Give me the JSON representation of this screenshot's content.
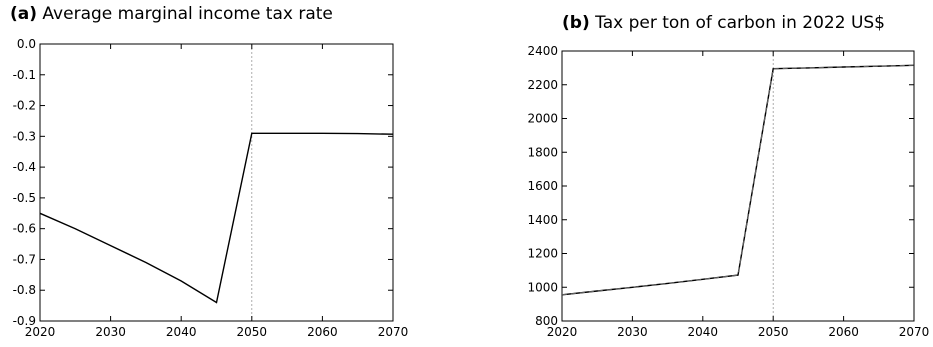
{
  "chart_data": [
    {
      "type": "line",
      "tag": "(a)",
      "title": "Average marginal income tax rate",
      "xlabel": "",
      "ylabel": "",
      "xlim": [
        2020,
        2070
      ],
      "ylim": [
        -0.9,
        0.0
      ],
      "xticks": [
        2020,
        2030,
        2040,
        2050,
        2060,
        2070
      ],
      "yticks": [
        -0.9,
        -0.8,
        -0.7,
        -0.6,
        -0.5,
        -0.4,
        -0.3,
        -0.2,
        -0.1,
        0.0
      ],
      "ytick_labels": [
        "-0.9",
        "-0.8",
        "-0.7",
        "-0.6",
        "-0.5",
        "-0.4",
        "-0.3",
        "-0.2",
        "-0.1",
        "0.0"
      ],
      "vline": 2050,
      "series": [
        {
          "style": "solid",
          "color": "#000000",
          "x": [
            2020,
            2025,
            2030,
            2035,
            2040,
            2045,
            2050,
            2055,
            2060,
            2065,
            2070
          ],
          "y": [
            -0.55,
            -0.6,
            -0.655,
            -0.71,
            -0.77,
            -0.84,
            -0.29,
            -0.29,
            -0.29,
            -0.291,
            -0.293
          ]
        }
      ]
    },
    {
      "type": "line",
      "tag": "(b)",
      "title": "Tax per ton of carbon in 2022 US$",
      "xlabel": "",
      "ylabel": "",
      "xlim": [
        2020,
        2070
      ],
      "ylim": [
        800,
        2400
      ],
      "xticks": [
        2020,
        2030,
        2040,
        2050,
        2060,
        2070
      ],
      "yticks": [
        800,
        1000,
        1200,
        1400,
        1600,
        1800,
        2000,
        2200,
        2400
      ],
      "ytick_labels": [
        "800",
        "1000",
        "1200",
        "1400",
        "1600",
        "1800",
        "2000",
        "2200",
        "2400"
      ],
      "vline": 2050,
      "series": [
        {
          "style": "solid",
          "color": "#000000",
          "x": [
            2020,
            2025,
            2030,
            2035,
            2040,
            2045,
            2050,
            2055,
            2060,
            2065,
            2070
          ],
          "y": [
            955,
            978,
            1000,
            1023,
            1047,
            1072,
            2295,
            2300,
            2305,
            2310,
            2315
          ]
        },
        {
          "style": "dashed",
          "color": "#000000",
          "x": [
            2020,
            2025,
            2030,
            2035,
            2040,
            2045,
            2050,
            2055,
            2060,
            2065,
            2070
          ],
          "y": [
            955,
            978,
            1000,
            1023,
            1047,
            1072,
            2295,
            2300,
            2305,
            2310,
            2315
          ]
        }
      ]
    }
  ]
}
